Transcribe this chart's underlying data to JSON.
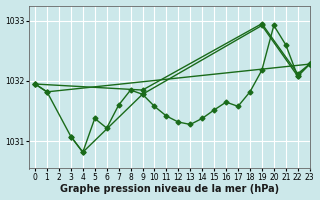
{
  "xlabel": "Graphe pression niveau de la mer (hPa)",
  "bg_color": "#cce8ea",
  "grid_color": "#ffffff",
  "line_color": "#1a6b1a",
  "xlim": [
    -0.5,
    23
  ],
  "ylim": [
    1030.55,
    1033.25
  ],
  "yticks": [
    1031,
    1032,
    1033
  ],
  "xticks": [
    0,
    1,
    2,
    3,
    4,
    5,
    6,
    7,
    8,
    9,
    10,
    11,
    12,
    13,
    14,
    15,
    16,
    17,
    18,
    19,
    20,
    21,
    22,
    23
  ],
  "series_main": {
    "x": [
      0,
      1,
      3,
      4,
      5,
      6,
      7,
      8,
      9,
      10,
      11,
      12,
      13,
      14,
      15,
      16,
      17,
      18,
      19,
      20,
      21,
      22,
      23
    ],
    "y": [
      1031.95,
      1031.82,
      1031.08,
      1030.82,
      1031.38,
      1031.22,
      1031.6,
      1031.85,
      1031.78,
      1031.58,
      1031.42,
      1031.32,
      1031.28,
      1031.38,
      1031.52,
      1031.65,
      1031.58,
      1031.82,
      1032.18,
      1032.92,
      1032.6,
      1032.08,
      1032.28
    ]
  },
  "series_upper": {
    "x": [
      0,
      9,
      19,
      22,
      23
    ],
    "y": [
      1031.95,
      1031.85,
      1032.95,
      1032.12,
      1032.28
    ]
  },
  "series_lower": {
    "x": [
      3,
      4,
      9,
      19,
      22,
      23
    ],
    "y": [
      1031.08,
      1030.82,
      1031.78,
      1032.92,
      1032.08,
      1032.28
    ]
  },
  "series_flat": {
    "x": [
      0,
      1,
      23
    ],
    "y": [
      1031.95,
      1031.82,
      1032.28
    ]
  },
  "marker": "D",
  "marker_size": 2.5,
  "linewidth": 1.0,
  "tick_fontsize": 5.5,
  "label_fontsize": 7
}
